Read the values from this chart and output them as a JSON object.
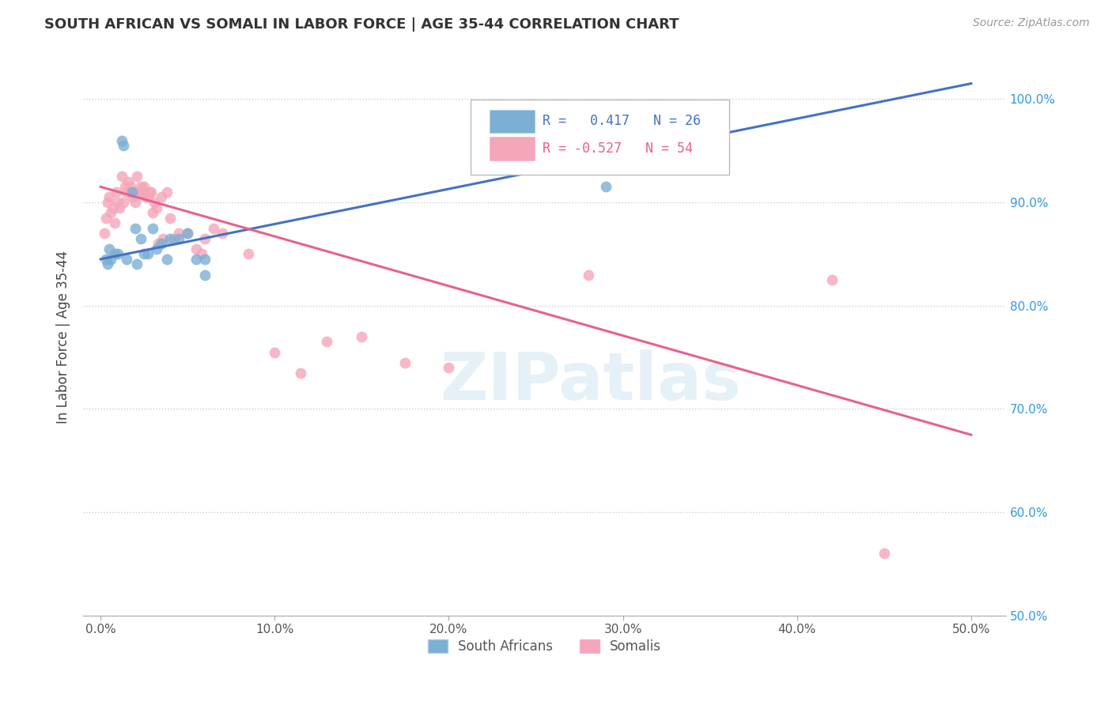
{
  "title": "SOUTH AFRICAN VS SOMALI IN LABOR FORCE | AGE 35-44 CORRELATION CHART",
  "source": "Source: ZipAtlas.com",
  "xlabel_vals": [
    0.0,
    10.0,
    20.0,
    30.0,
    40.0,
    50.0
  ],
  "ylabel_vals": [
    50.0,
    60.0,
    70.0,
    80.0,
    90.0,
    100.0
  ],
  "ylabel_label": "In Labor Force | Age 35-44",
  "blue_R": 0.417,
  "blue_N": 26,
  "pink_R": -0.527,
  "pink_N": 54,
  "blue_color": "#7BAFD4",
  "pink_color": "#F4A7B9",
  "blue_line_color": "#4472C4",
  "pink_line_color": "#E8618C",
  "legend_label_blue": "South Africans",
  "legend_label_pink": "Somalis",
  "watermark": "ZIPatlas",
  "xlim": [
    -1.0,
    52.0
  ],
  "ylim": [
    50.0,
    104.0
  ],
  "blue_line_x0": 0.0,
  "blue_line_y0": 84.5,
  "blue_line_x1": 50.0,
  "blue_line_y1": 101.5,
  "pink_line_x0": 0.0,
  "pink_line_y0": 91.5,
  "pink_line_x1": 50.0,
  "pink_line_y1": 67.5,
  "south_african_x": [
    0.3,
    0.4,
    0.5,
    0.6,
    0.8,
    1.0,
    1.2,
    1.3,
    1.5,
    1.8,
    2.0,
    2.1,
    2.3,
    2.5,
    2.7,
    3.0,
    3.2,
    3.5,
    3.8,
    4.0,
    4.5,
    5.0,
    5.5,
    6.0,
    6.0,
    29.0
  ],
  "south_african_y": [
    84.5,
    84.0,
    85.5,
    84.5,
    85.0,
    85.0,
    96.0,
    95.5,
    84.5,
    91.0,
    87.5,
    84.0,
    86.5,
    85.0,
    85.0,
    87.5,
    85.5,
    86.0,
    84.5,
    86.5,
    86.5,
    87.0,
    84.5,
    83.0,
    84.5,
    91.5
  ],
  "somali_x": [
    0.2,
    0.3,
    0.4,
    0.5,
    0.6,
    0.7,
    0.8,
    0.9,
    1.0,
    1.1,
    1.2,
    1.3,
    1.4,
    1.5,
    1.6,
    1.7,
    1.8,
    1.9,
    2.0,
    2.1,
    2.2,
    2.3,
    2.4,
    2.5,
    2.6,
    2.7,
    2.8,
    2.9,
    3.0,
    3.1,
    3.2,
    3.5,
    3.8,
    4.0,
    4.5,
    5.0,
    5.5,
    6.0,
    7.0,
    8.5,
    10.0,
    11.5,
    13.0,
    15.0,
    17.5,
    20.0,
    28.0,
    42.0,
    45.0,
    3.3,
    3.6,
    4.2,
    5.8,
    6.5
  ],
  "somali_y": [
    87.0,
    88.5,
    90.0,
    90.5,
    89.0,
    89.5,
    88.0,
    91.0,
    90.0,
    89.5,
    92.5,
    90.0,
    91.5,
    91.0,
    92.0,
    91.5,
    90.5,
    91.0,
    90.0,
    92.5,
    91.0,
    91.5,
    91.0,
    91.5,
    90.5,
    90.5,
    91.0,
    91.0,
    89.0,
    90.0,
    89.5,
    90.5,
    91.0,
    88.5,
    87.0,
    87.0,
    85.5,
    86.5,
    87.0,
    85.0,
    75.5,
    73.5,
    76.5,
    77.0,
    74.5,
    74.0,
    83.0,
    82.5,
    56.0,
    86.0,
    86.5,
    86.5,
    85.0,
    87.5
  ]
}
